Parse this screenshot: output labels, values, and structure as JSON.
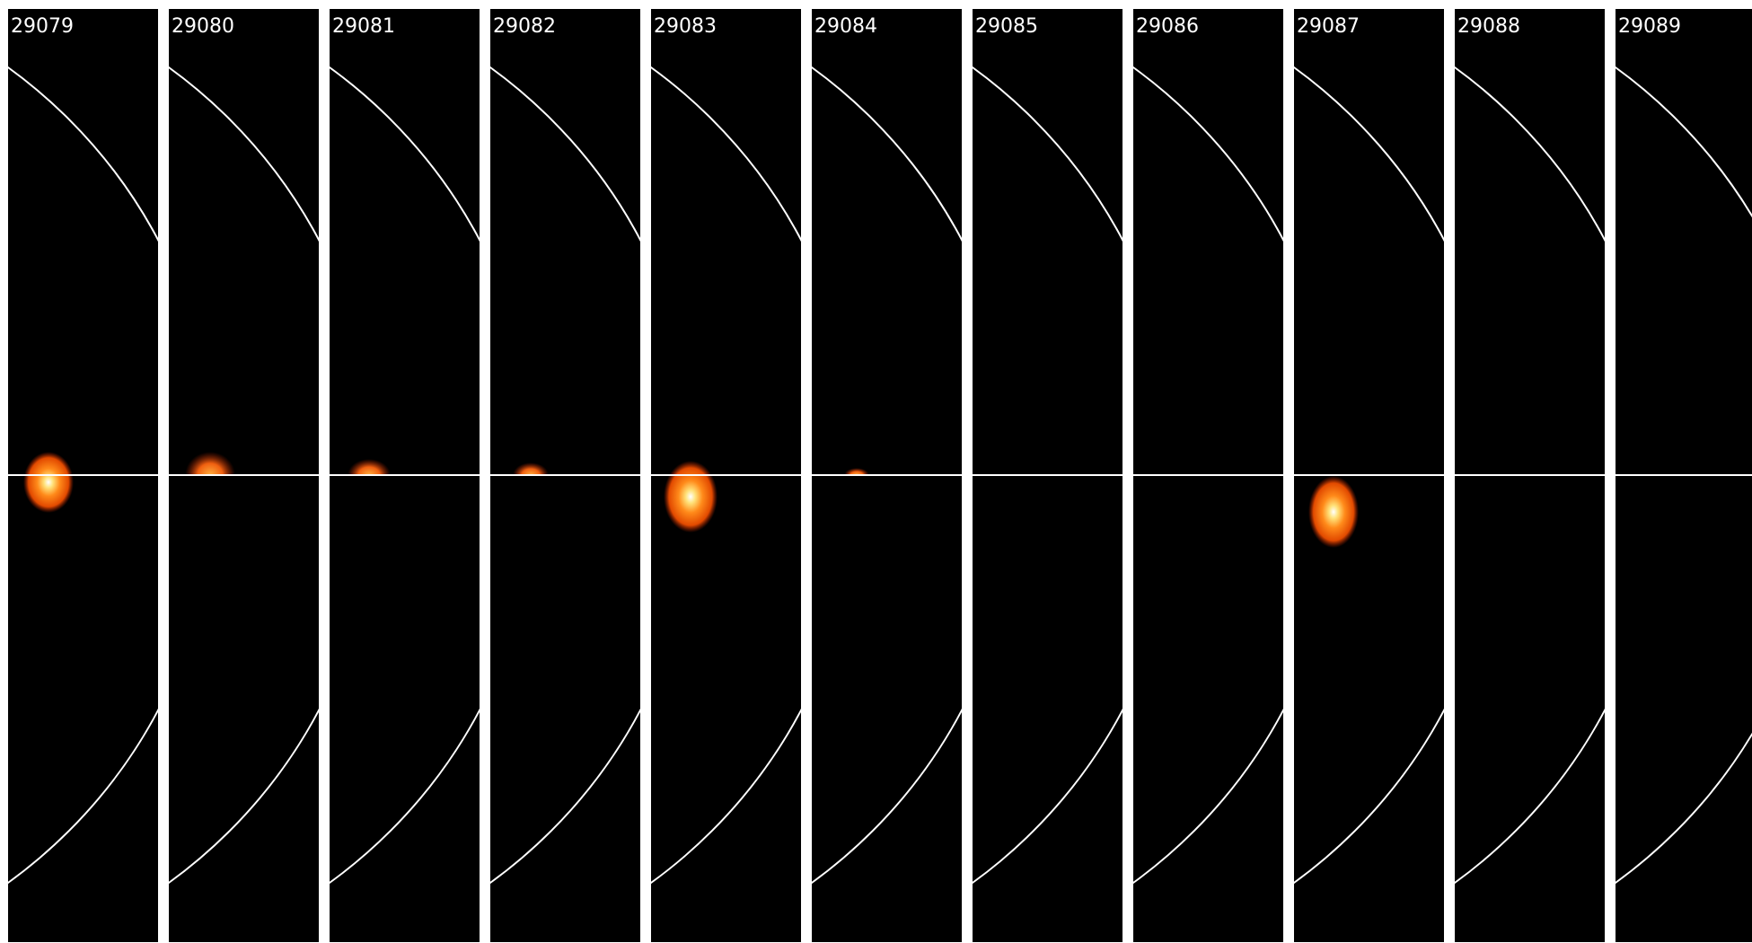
{
  "frames": [
    {
      "label": "29079"
    },
    {
      "label": "29080"
    },
    {
      "label": "29081"
    },
    {
      "label": "29082"
    },
    {
      "label": "29083"
    },
    {
      "label": "29084"
    },
    {
      "label": "29085"
    },
    {
      "label": "29086"
    },
    {
      "label": "29087"
    },
    {
      "label": "29088"
    },
    {
      "label": "29089"
    }
  ]
}
